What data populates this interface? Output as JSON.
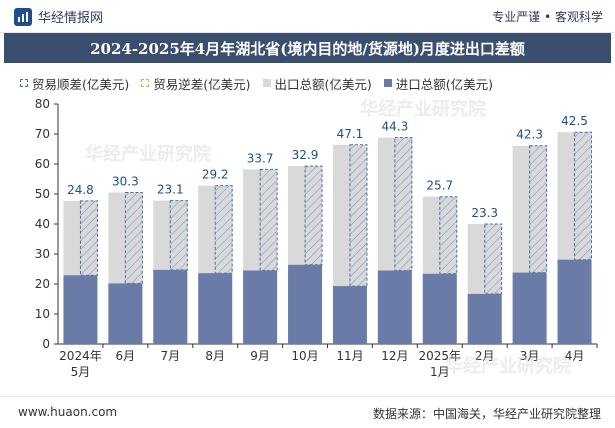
{
  "header": {
    "brand_name": "华经情报网",
    "tagline": "专业严谨 • 客观科学"
  },
  "title": "2024-2025年4月年湖北省(境内目的地/货源地)月度进出口差额",
  "footer": {
    "site": "www.huaon.com",
    "source": "数据来源：中国海关，华经产业研究院整理"
  },
  "watermark": "华经产业研究院",
  "colors": {
    "export": "#d9d9d9",
    "import": "#6a7ba8",
    "surplus_border": "#4a6fa5",
    "deficit_border": "#d9b43a",
    "title_bg": "#3a4e6e"
  },
  "chart_data": {
    "type": "bar",
    "categories": [
      "2024年\n5月",
      "6月",
      "7月",
      "8月",
      "9月",
      "10月",
      "11月",
      "12月",
      "2025年\n1月",
      "2月",
      "3月",
      "4月"
    ],
    "series": [
      {
        "name": "贸易顺差(亿美元)",
        "values": [
          24.8,
          30.3,
          23.1,
          29.2,
          33.7,
          32.9,
          47.1,
          44.3,
          25.7,
          23.3,
          42.3,
          42.5
        ]
      },
      {
        "name": "贸易逆差(亿美元)",
        "values": [
          0,
          0,
          0,
          0,
          0,
          0,
          0,
          0,
          0,
          0,
          0,
          0
        ]
      },
      {
        "name": "出口总额(亿美元)",
        "values": [
          47.7,
          50.5,
          47.8,
          52.8,
          58.2,
          59.3,
          66.4,
          68.8,
          49.1,
          40.0,
          66.1,
          70.6
        ]
      },
      {
        "name": "进口总额(亿美元)",
        "values": [
          22.9,
          20.2,
          24.7,
          23.6,
          24.5,
          26.4,
          19.3,
          24.5,
          23.4,
          16.7,
          23.8,
          28.1
        ]
      }
    ],
    "ylim": [
      0,
      80
    ],
    "yticks": [
      0,
      10,
      20,
      30,
      40,
      50,
      60,
      70,
      80
    ],
    "legend_position": "top-left",
    "grid": false
  }
}
